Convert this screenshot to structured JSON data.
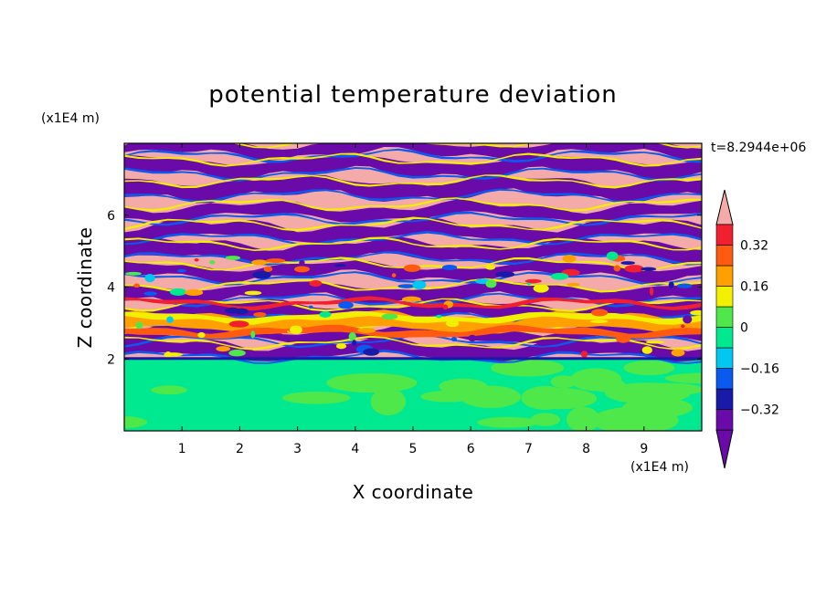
{
  "chart_data": {
    "type": "heatmap",
    "title": "potential temperature deviation",
    "xlabel": "X coordinate",
    "ylabel": "Z coordinate",
    "x_unit": "(x1E4 m)",
    "y_unit": "(x1E4 m)",
    "time_label": "t=8.2944e+06",
    "xlim": [
      0,
      10
    ],
    "ylim": [
      0,
      8
    ],
    "x_ticks": [
      "1",
      "2",
      "3",
      "4",
      "5",
      "6",
      "7",
      "8",
      "9"
    ],
    "y_ticks": [
      "2",
      "4",
      "6"
    ],
    "colorbar": {
      "labels": [
        "0.32",
        "0.16",
        "0",
        "-0.16",
        "-0.32"
      ],
      "label_values": [
        0.32,
        0.16,
        0,
        -0.16,
        -0.32
      ],
      "levels": [
        -0.4,
        -0.32,
        -0.24,
        -0.16,
        -0.08,
        0,
        0.08,
        0.16,
        0.24,
        0.32,
        0.4
      ],
      "colors": [
        "#6a0aa8",
        "#1a1aa8",
        "#0a5af0",
        "#00c8f0",
        "#00e890",
        "#4ee84a",
        "#f0f000",
        "#ffa000",
        "#ff5a10",
        "#f02030"
      ],
      "over_color": "#f4aaa8",
      "under_color": "#6a0aa8"
    },
    "regions": [
      {
        "z_range": [
          0,
          2
        ],
        "description_value": "near 0",
        "dominant_colors": [
          "#00e890",
          "#4ee84a"
        ]
      },
      {
        "z_range": [
          2,
          8
        ],
        "description_value": "alternating saturated layers",
        "dominant_colors": [
          "#f4aaa8",
          "#6a0aa8"
        ]
      }
    ]
  }
}
